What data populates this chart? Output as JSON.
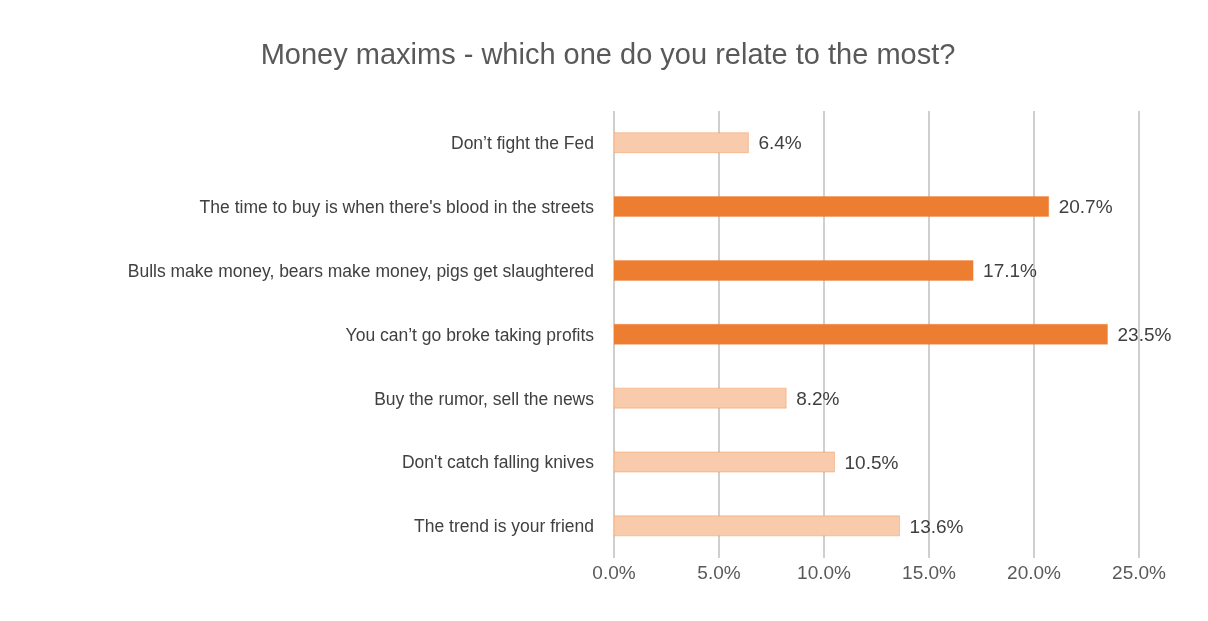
{
  "chart_data": {
    "type": "bar",
    "orientation": "horizontal",
    "title": "Money maxims - which one do you relate to the most?",
    "categories": [
      "Don’t fight the Fed",
      "The time to buy is when there's blood in the streets",
      "Bulls make money, bears make money, pigs get slaughtered",
      "You can’t go broke taking profits",
      "Buy the rumor, sell the news",
      "Don't catch falling knives",
      "The trend is your friend"
    ],
    "values": [
      6.4,
      20.7,
      17.1,
      23.5,
      8.2,
      10.5,
      13.6
    ],
    "value_labels": [
      "6.4%",
      "20.7%",
      "17.1%",
      "23.5%",
      "8.2%",
      "10.5%",
      "13.6%"
    ],
    "colors": [
      "#f8cbad",
      "#ed7d31",
      "#ed7d31",
      "#ed7d31",
      "#f8cbad",
      "#f8cbad",
      "#f8cbad"
    ],
    "xlim": [
      0,
      25
    ],
    "xticks": [
      {
        "value": 0,
        "label": "0.0%"
      },
      {
        "value": 5,
        "label": "5.0%"
      },
      {
        "value": 10,
        "label": "10.0%"
      },
      {
        "value": 15,
        "label": "15.0%"
      },
      {
        "value": 20,
        "label": "20.0%"
      },
      {
        "value": 25,
        "label": "25.0%"
      }
    ],
    "grid": "x",
    "legend": false
  }
}
